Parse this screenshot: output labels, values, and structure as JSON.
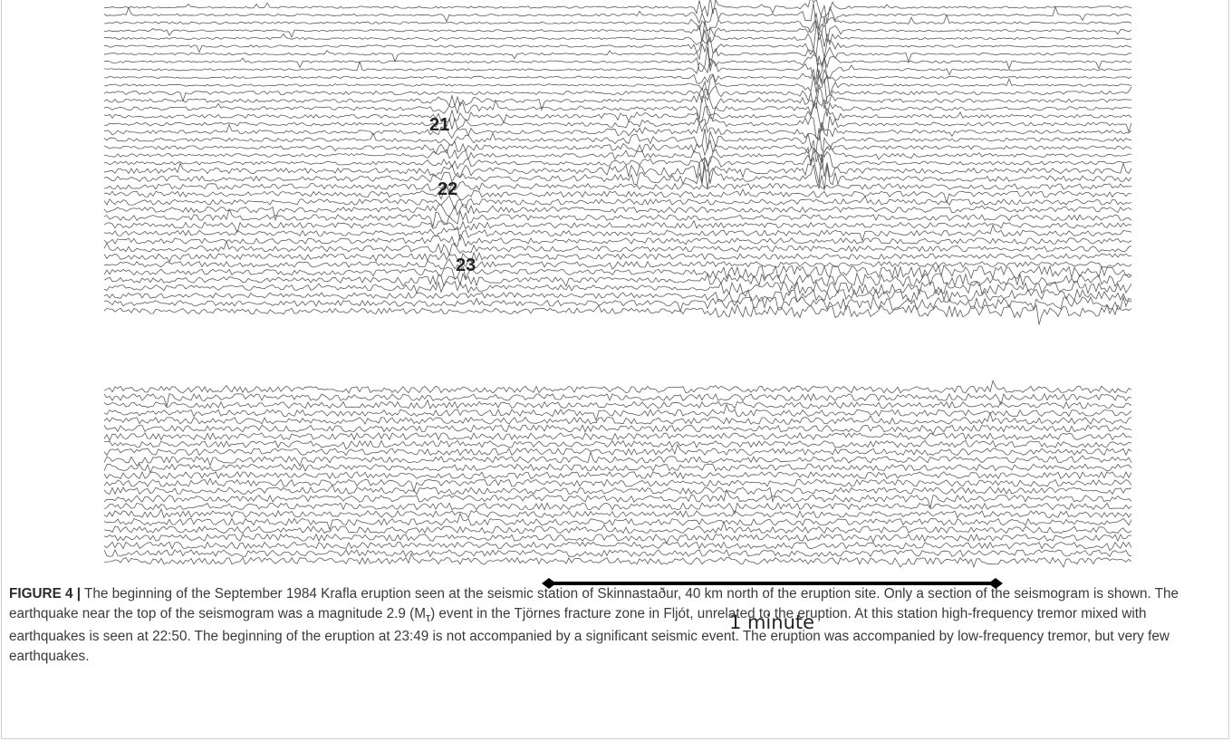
{
  "figure": {
    "trace_labels": [
      "21",
      "22",
      "23"
    ],
    "scale_bar_label": "1 minute",
    "caption": {
      "label": "FIGURE 4 |",
      "text_before": " The beginning of the September 1984 Krafla eruption seen at the seismic station of Skinnastaður, 40 km north of the eruption site. Only a section of the seismogram is shown. The earthquake near the top of the seismogram was a magnitude 2.9 (M",
      "subscript": "τ",
      "text_after": ") event in the Tjörnes fracture zone in Fljót, unrelated to the eruption. At this station high-frequency tremor mixed with earthquakes is seen at 22:50. The beginning of the eruption at 23:49 is not accompanied by a significant seismic event. The eruption was accompanied by low-frequency tremor, but very few earthquakes."
    }
  }
}
